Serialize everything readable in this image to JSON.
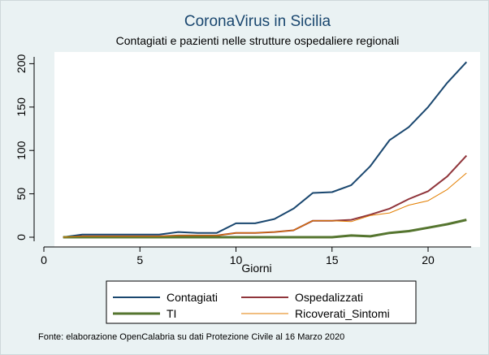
{
  "chart_data": {
    "type": "line",
    "title": "CoronaVirus in Sicilia",
    "subtitle": "Contagiati e pazienti nelle strutture ospedaliere regionali",
    "xlabel": "Giorni",
    "ylabel": "",
    "xlim": [
      0,
      22.7
    ],
    "ylim": [
      -4,
      210
    ],
    "xticks": [
      0,
      5,
      10,
      15,
      20
    ],
    "yticks": [
      0,
      50,
      100,
      150,
      200
    ],
    "grid": false,
    "legend_position": "bottom",
    "x": [
      1,
      2,
      3,
      4,
      5,
      6,
      7,
      8,
      9,
      10,
      11,
      12,
      13,
      14,
      15,
      16,
      17,
      18,
      19,
      20,
      21,
      22
    ],
    "series": [
      {
        "name": "Contagiati",
        "color": "#1a476f",
        "width": 2,
        "values": [
          0,
          3,
          3,
          3,
          3,
          3,
          6,
          5,
          5,
          16,
          16,
          21,
          33,
          51,
          52,
          60,
          82,
          112,
          127,
          150,
          178,
          202
        ]
      },
      {
        "name": "Ospedalizzati",
        "color": "#90353b",
        "width": 2,
        "values": [
          0,
          1,
          1,
          1,
          1,
          1,
          2,
          2,
          2,
          5,
          5,
          6,
          8,
          19,
          19,
          20,
          26,
          33,
          44,
          53,
          70,
          94
        ]
      },
      {
        "name": "TI",
        "color": "#55752f",
        "width": 3,
        "values": [
          0,
          0,
          0,
          0,
          0,
          0,
          0,
          0,
          0,
          0,
          0,
          0,
          0,
          0,
          0,
          2,
          1,
          5,
          7,
          11,
          15,
          20
        ]
      },
      {
        "name": "Ricoverati_Sintomi",
        "color": "#e37e00",
        "width": 1,
        "values": [
          0,
          1,
          1,
          1,
          1,
          1,
          2,
          2,
          2,
          5,
          5,
          6,
          8,
          19,
          19,
          18,
          25,
          28,
          37,
          42,
          55,
          74
        ]
      }
    ]
  },
  "note": "Fonte: elaborazione OpenCalabria su dati Protezione Civile al 16 Marzo 2020"
}
